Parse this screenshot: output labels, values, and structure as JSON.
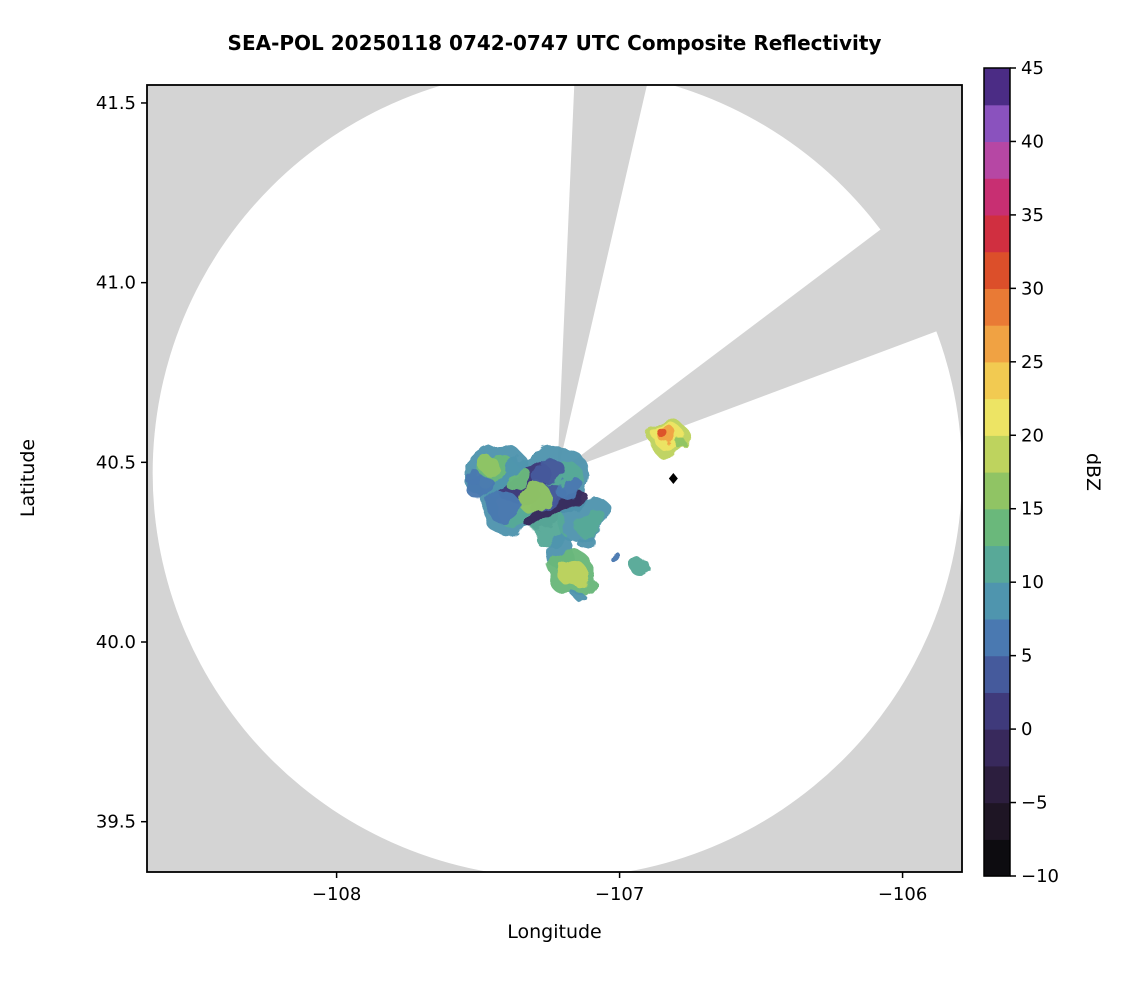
{
  "figure": {
    "title": "SEA-POL 20250118 0742-0747 UTC Composite Reflectivity",
    "xlabel": "Longitude",
    "ylabel": "Latitude",
    "colorbar_label": "dBZ"
  },
  "chart_data": {
    "type": "heatmap",
    "title": "SEA-POL 20250118 0742-0747 UTC Composite Reflectivity",
    "xlabel": "Longitude",
    "ylabel": "Latitude",
    "xlim": [
      -108.67,
      -105.79
    ],
    "ylim": [
      39.36,
      41.55
    ],
    "x_ticks": [
      -108,
      -107,
      -106
    ],
    "x_tick_labels": [
      "−108",
      "−107",
      "−106"
    ],
    "y_ticks": [
      39.5,
      40.0,
      40.5,
      41.0,
      41.5
    ],
    "y_tick_labels": [
      "39.5",
      "40.0",
      "40.5",
      "41.0",
      "41.5"
    ],
    "grid": false,
    "background_color": "#d4d4d4",
    "coverage_fill": "#ffffff",
    "radar": {
      "center_lon": -107.22,
      "center_lat": 40.47,
      "range_radius_deg_lon": 1.43,
      "blocked_sectors_az_deg": [
        [
          2.5,
          13.5
        ],
        [
          53,
          70
        ]
      ],
      "marker": {
        "lon": -106.81,
        "lat": 40.455,
        "shape": "diamond",
        "color": "#000000"
      }
    },
    "colorbar": {
      "label": "dBZ",
      "min": -10,
      "max": 45,
      "bin_size": 2.5,
      "ticks": [
        -10,
        -5,
        0,
        5,
        10,
        15,
        20,
        25,
        30,
        35,
        40,
        45
      ],
      "tick_labels": [
        "−10",
        "−5",
        "0",
        "5",
        "10",
        "15",
        "20",
        "25",
        "30",
        "35",
        "40",
        "45"
      ],
      "stops": [
        [
          -10,
          "#0d0c10"
        ],
        [
          -7.5,
          "#1e1524"
        ],
        [
          -5,
          "#2c1e3e"
        ],
        [
          -2.5,
          "#38295c"
        ],
        [
          0,
          "#3f3a7b"
        ],
        [
          2.5,
          "#455a9c"
        ],
        [
          5,
          "#4a79b1"
        ],
        [
          7.5,
          "#4f95ae"
        ],
        [
          10,
          "#58a998"
        ],
        [
          12.5,
          "#6ab87b"
        ],
        [
          15,
          "#90c464"
        ],
        [
          17.5,
          "#bed35e"
        ],
        [
          20,
          "#ede464"
        ],
        [
          22.5,
          "#f2ca51"
        ],
        [
          25,
          "#f0a243"
        ],
        [
          27.5,
          "#e97a35"
        ],
        [
          30,
          "#dc4f2a"
        ],
        [
          32.5,
          "#d02f40"
        ],
        [
          35,
          "#c82f72"
        ],
        [
          37.5,
          "#b647a4"
        ],
        [
          40,
          "#8a52be"
        ],
        [
          42.5,
          "#4b2c85"
        ]
      ]
    },
    "echo_cells": [
      {
        "lon": -107.44,
        "lat": 40.475,
        "rx": 0.115,
        "ry": 0.075,
        "rot": -25,
        "dbz": 7.5
      },
      {
        "lon": -107.435,
        "lat": 40.47,
        "rx": 0.075,
        "ry": 0.045,
        "rot": -25,
        "dbz": 12.5
      },
      {
        "lon": -107.46,
        "lat": 40.49,
        "rx": 0.035,
        "ry": 0.022,
        "rot": -25,
        "dbz": 15
      },
      {
        "lon": -107.3,
        "lat": 40.42,
        "rx": 0.21,
        "ry": 0.1,
        "rot": -32,
        "dbz": 7.5
      },
      {
        "lon": -107.28,
        "lat": 40.41,
        "rx": 0.17,
        "ry": 0.07,
        "rot": -32,
        "dbz": 10
      },
      {
        "lon": -107.33,
        "lat": 40.44,
        "rx": 0.1,
        "ry": 0.045,
        "rot": -32,
        "dbz": 0
      },
      {
        "lon": -107.22,
        "lat": 40.365,
        "rx": 0.12,
        "ry": 0.035,
        "rot": -30,
        "dbz": -2.5
      },
      {
        "lon": -107.26,
        "lat": 40.4,
        "rx": 0.07,
        "ry": 0.03,
        "rot": -30,
        "dbz": 2.5
      },
      {
        "lon": -107.3,
        "lat": 40.4,
        "rx": 0.06,
        "ry": 0.04,
        "rot": -32,
        "dbz": 15
      },
      {
        "lon": -107.36,
        "lat": 40.455,
        "rx": 0.05,
        "ry": 0.03,
        "rot": -32,
        "dbz": 12.5
      },
      {
        "lon": -107.12,
        "lat": 40.34,
        "rx": 0.1,
        "ry": 0.05,
        "rot": -35,
        "dbz": 7.5
      },
      {
        "lon": -107.1,
        "lat": 40.33,
        "rx": 0.06,
        "ry": 0.03,
        "rot": -35,
        "dbz": 10
      },
      {
        "lon": -107.41,
        "lat": 40.375,
        "rx": 0.06,
        "ry": 0.04,
        "rot": -20,
        "dbz": 5
      },
      {
        "lon": -107.25,
        "lat": 40.47,
        "rx": 0.06,
        "ry": 0.03,
        "rot": -30,
        "dbz": 2.5
      },
      {
        "lon": -107.18,
        "lat": 40.43,
        "rx": 0.05,
        "ry": 0.025,
        "rot": -30,
        "dbz": 5
      },
      {
        "lon": -107.24,
        "lat": 40.31,
        "rx": 0.07,
        "ry": 0.035,
        "rot": -35,
        "dbz": 10
      },
      {
        "lon": -107.49,
        "lat": 40.43,
        "rx": 0.05,
        "ry": 0.035,
        "rot": -20,
        "dbz": 5
      },
      {
        "lon": -107.52,
        "lat": 40.46,
        "rx": 0.03,
        "ry": 0.02,
        "rot": -20,
        "dbz": 5
      },
      {
        "lon": -107.21,
        "lat": 40.25,
        "rx": 0.05,
        "ry": 0.05,
        "rot": 0,
        "dbz": 7.5
      },
      {
        "lon": -107.17,
        "lat": 40.19,
        "rx": 0.085,
        "ry": 0.065,
        "rot": -10,
        "dbz": 12.5
      },
      {
        "lon": -107.165,
        "lat": 40.19,
        "rx": 0.05,
        "ry": 0.04,
        "rot": -10,
        "dbz": 17.5
      },
      {
        "lon": -107.14,
        "lat": 40.125,
        "rx": 0.02,
        "ry": 0.012,
        "rot": 0,
        "dbz": 7.5
      },
      {
        "lon": -106.93,
        "lat": 40.21,
        "rx": 0.035,
        "ry": 0.025,
        "rot": 0,
        "dbz": 10
      },
      {
        "lon": -107.02,
        "lat": 40.24,
        "rx": 0.02,
        "ry": 0.015,
        "rot": 0,
        "dbz": 5
      },
      {
        "lon": -107.12,
        "lat": 40.28,
        "rx": 0.03,
        "ry": 0.02,
        "rot": -30,
        "dbz": 7.5
      },
      {
        "lon": -106.825,
        "lat": 40.565,
        "rx": 0.075,
        "ry": 0.05,
        "rot": -10,
        "dbz": 17.5
      },
      {
        "lon": -106.825,
        "lat": 40.57,
        "rx": 0.055,
        "ry": 0.035,
        "rot": -10,
        "dbz": 20
      },
      {
        "lon": -106.83,
        "lat": 40.575,
        "rx": 0.035,
        "ry": 0.022,
        "rot": -10,
        "dbz": 25
      },
      {
        "lon": -106.845,
        "lat": 40.578,
        "rx": 0.018,
        "ry": 0.012,
        "rot": -10,
        "dbz": 30
      },
      {
        "lon": -106.78,
        "lat": 40.55,
        "rx": 0.02,
        "ry": 0.015,
        "rot": 0,
        "dbz": 15
      }
    ]
  }
}
